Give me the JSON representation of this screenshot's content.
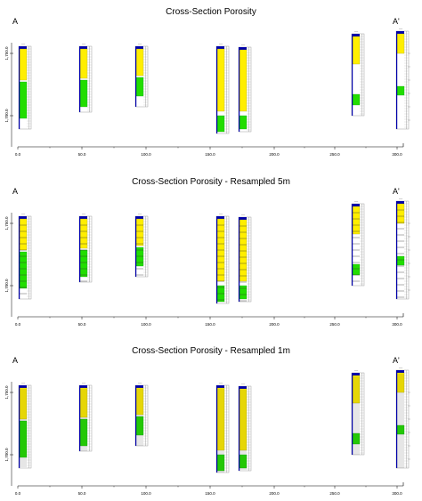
{
  "colors": {
    "high_porosity": "#ffee00",
    "low_porosity": "#22dd00",
    "base": "#0000aa",
    "grid": "#888888",
    "axis": "#000000"
  },
  "chart_data": [
    {
      "type": "well-log cross-section",
      "title": "Cross-Section Porosity",
      "start_label": "A",
      "end_label": "A'",
      "x_ticks": [
        "0.0",
        "50.0",
        "100.0",
        "150.0",
        "200.0",
        "250.0",
        "300.0"
      ],
      "y_ticks": [
        "1,750.0",
        "1,700.0"
      ]
    },
    {
      "type": "well-log cross-section",
      "title": "Cross-Section Porosity - Resampled 5m",
      "start_label": "A",
      "end_label": "A'",
      "x_ticks": [
        "0.0",
        "50.0",
        "100.0",
        "150.0",
        "200.0",
        "250.0",
        "300.0"
      ],
      "y_ticks": [
        "1,750.0",
        "1,700.0"
      ]
    },
    {
      "type": "well-log cross-section",
      "title": "Cross-Section Porosity - Resampled 1m",
      "start_label": "A",
      "end_label": "A'",
      "x_ticks": [
        "0.0",
        "50.0",
        "100.0",
        "150.0",
        "200.0",
        "250.0",
        "300.0"
      ],
      "y_ticks": [
        "1,750.0",
        "1,700.0"
      ]
    }
  ]
}
